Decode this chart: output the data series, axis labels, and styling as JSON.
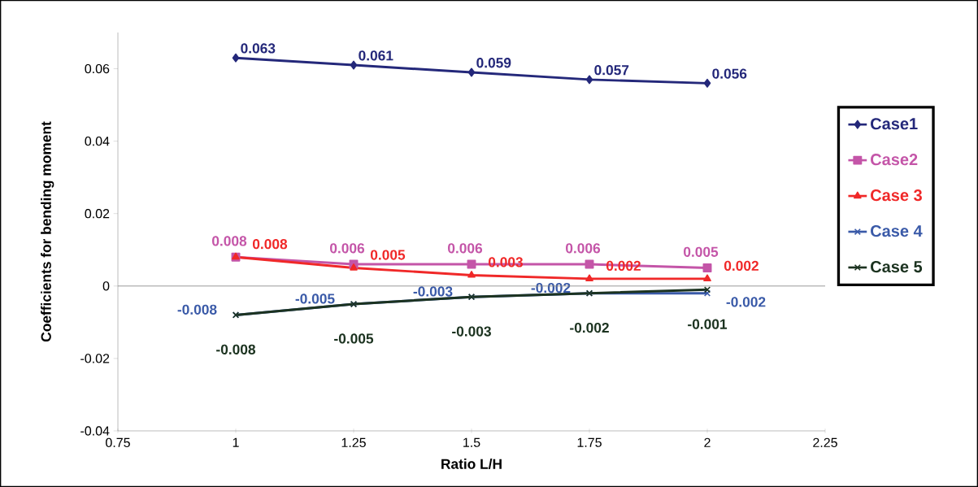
{
  "chart_data": {
    "type": "line",
    "xlabel": "Ratio L/H",
    "ylabel": "Coefficients for bending moment",
    "x": [
      1,
      1.25,
      1.5,
      1.75,
      2
    ],
    "series": [
      {
        "name": "Case1",
        "color": "#24287a",
        "marker": "diamond",
        "values": [
          0.063,
          0.061,
          0.059,
          0.057,
          0.056
        ]
      },
      {
        "name": "Case2",
        "color": "#c455a8",
        "marker": "square",
        "values": [
          0.008,
          0.006,
          0.006,
          0.006,
          0.005
        ]
      },
      {
        "name": "Case 3",
        "color": "#f02828",
        "marker": "triangle",
        "values": [
          0.008,
          0.005,
          0.003,
          0.002,
          0.002
        ]
      },
      {
        "name": "Case 4",
        "color": "#3a5aa8",
        "marker": "cross",
        "values": [
          -0.008,
          -0.005,
          -0.003,
          -0.002,
          -0.002
        ]
      },
      {
        "name": "Case 5",
        "color": "#1c3320",
        "marker": "cross",
        "values": [
          -0.008,
          -0.005,
          -0.003,
          -0.002,
          -0.001
        ]
      }
    ],
    "xlim": [
      0.75,
      2.25
    ],
    "xticks": [
      0.75,
      1,
      1.25,
      1.5,
      1.75,
      2,
      2.25
    ],
    "ylim": [
      -0.04,
      0.07
    ],
    "yticks": [
      -0.04,
      -0.02,
      0,
      0.02,
      0.04,
      0.06
    ],
    "data_labels": true,
    "legend": "right"
  }
}
